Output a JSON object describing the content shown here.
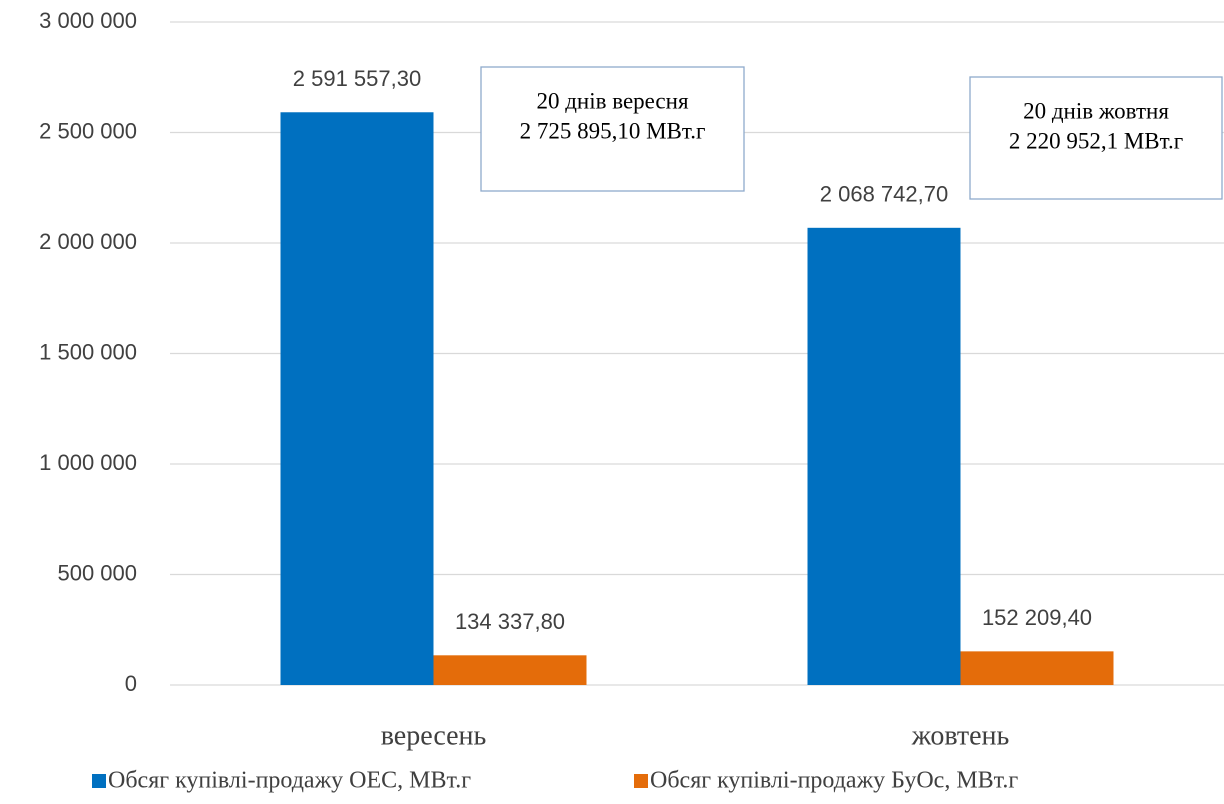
{
  "chart_data": {
    "type": "bar",
    "categories": [
      "вересень",
      "жовтень"
    ],
    "series": [
      {
        "name": "Обсяг купівлі-продажу ОЕС, МВт.г",
        "color": "#0070c0",
        "values": [
          2591557.3,
          2068742.7
        ],
        "value_labels": [
          "2 591 557,30",
          "2 068 742,70"
        ]
      },
      {
        "name": "Обсяг купівлі-продажу БуОс, МВт.г",
        "color": "#e46c0a",
        "values": [
          134337.8,
          152209.4
        ],
        "value_labels": [
          "134 337,80",
          "152 209,40"
        ]
      }
    ],
    "ylim": [
      0,
      3000000
    ],
    "yticks": [
      0,
      {
        "value": 500000,
        "label": "500 000"
      },
      {
        "value": 1000000,
        "label": "1 000 000"
      },
      {
        "value": 1500000,
        "label": "1 500 000"
      },
      {
        "value": 2000000,
        "label": "2 000 000"
      },
      {
        "value": 2500000,
        "label": "2 500 000"
      },
      {
        "value": 3000000,
        "label": "3 000 000"
      }
    ],
    "grid": true,
    "legend": "bottom",
    "annotations": [
      {
        "lines": [
          "20 днів вересня",
          "2 725 895,10 МВт.г"
        ]
      },
      {
        "lines": [
          "20 днів жовтня",
          "2 220 952,1 МВт.г"
        ]
      }
    ]
  }
}
